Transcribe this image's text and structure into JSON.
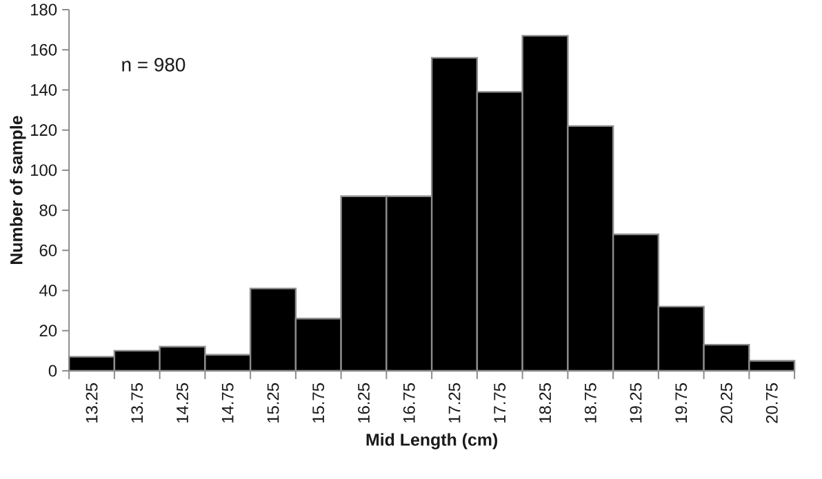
{
  "chart_data": {
    "type": "bar",
    "xlabel": "Mid Length (cm)",
    "ylabel": "Number of sample",
    "categories": [
      "13.25",
      "13.75",
      "14.25",
      "14.75",
      "15.25",
      "15.75",
      "16.25",
      "16.75",
      "17.25",
      "17.75",
      "18.25",
      "18.75",
      "19.25",
      "19.75",
      "20.25",
      "20.75"
    ],
    "values": [
      7,
      10,
      12,
      8,
      41,
      26,
      87,
      87,
      156,
      139,
      167,
      122,
      68,
      32,
      13,
      5
    ],
    "color": "#000000",
    "ylim": [
      0,
      180
    ],
    "yticks": [
      0,
      20,
      40,
      60,
      80,
      100,
      120,
      140,
      160,
      180
    ],
    "annotations": [
      "n = 980"
    ]
  }
}
